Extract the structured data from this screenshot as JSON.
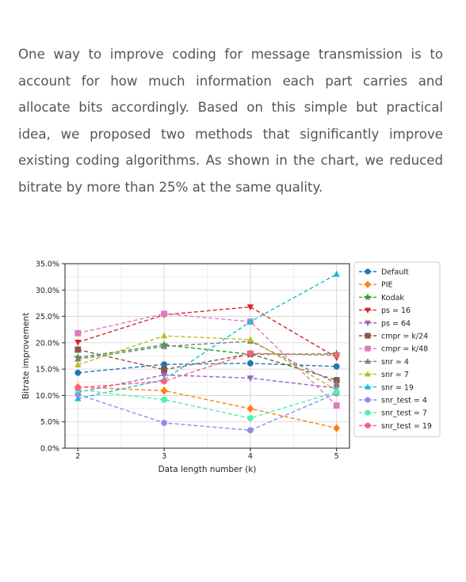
{
  "intro_text": "One way to improve coding for message transmission is to account for how much information each part carries and allocate bits accordingly. Based on this simple but practical idea, we proposed two methods that significantly improve existing coding algorithms. As shown in the chart, we reduced bitrate by more than 25% at the same quality.",
  "chart_data": {
    "type": "line",
    "xlabel": "Data length number (k)",
    "ylabel": "Bitrate improvement",
    "x": [
      2,
      3,
      4,
      5
    ],
    "x_ticks": [
      "2",
      "3",
      "4",
      "5"
    ],
    "xlim": [
      1.85,
      5.15
    ],
    "ylim": [
      0,
      35
    ],
    "y_ticks": [
      "0.0%",
      "5.0%",
      "10.0%",
      "15.0%",
      "20.0%",
      "25.0%",
      "30.0%",
      "35.0%"
    ],
    "grid": true,
    "legend_position": "right",
    "series": [
      {
        "name": "Default",
        "color": "#1f77b4",
        "marker": "circle",
        "values": [
          14.3,
          15.9,
          16.1,
          15.5
        ]
      },
      {
        "name": "PIE",
        "color": "#ff7f0e",
        "marker": "diamond",
        "values": [
          11.6,
          10.9,
          7.5,
          3.8
        ]
      },
      {
        "name": "Kodak",
        "color": "#2ca02c",
        "marker": "star",
        "values": [
          17.2,
          19.6,
          17.8,
          17.9
        ]
      },
      {
        "name": "ps = 16",
        "color": "#d62728",
        "marker": "tri-down",
        "values": [
          20.1,
          25.3,
          26.8,
          17.2
        ]
      },
      {
        "name": "ps = 64",
        "color": "#9467bd",
        "marker": "tri-down",
        "values": [
          10.6,
          13.9,
          13.3,
          11.4
        ]
      },
      {
        "name": "cmpr = k/24",
        "color": "#8c564b",
        "marker": "square",
        "values": [
          18.7,
          14.9,
          17.9,
          12.9
        ]
      },
      {
        "name": "cmpr = k/48",
        "color": "#e377c2",
        "marker": "square",
        "values": [
          21.8,
          25.5,
          24.0,
          8.1
        ]
      },
      {
        "name": "snr = 4",
        "color": "#7f7f7f",
        "marker": "tri-up",
        "values": [
          16.9,
          19.3,
          20.3,
          12.3
        ]
      },
      {
        "name": "snr = 7",
        "color": "#bcbd22",
        "marker": "tri-up",
        "values": [
          15.8,
          21.3,
          20.6,
          11.0
        ]
      },
      {
        "name": "snr = 19",
        "color": "#17becf",
        "marker": "tri-up",
        "values": [
          9.4,
          13.0,
          24.0,
          33.0
        ]
      },
      {
        "name": "snr_test = 4",
        "color": "#8c8cf0",
        "marker": "circle",
        "values": [
          10.2,
          4.8,
          3.4,
          10.4
        ]
      },
      {
        "name": "snr_test = 7",
        "color": "#4df0b0",
        "marker": "circle",
        "values": [
          11.1,
          9.2,
          5.7,
          10.7
        ]
      },
      {
        "name": "snr_test = 19",
        "color": "#ff5c80",
        "marker": "circle",
        "values": [
          11.5,
          12.7,
          18.0,
          17.6
        ]
      }
    ]
  }
}
